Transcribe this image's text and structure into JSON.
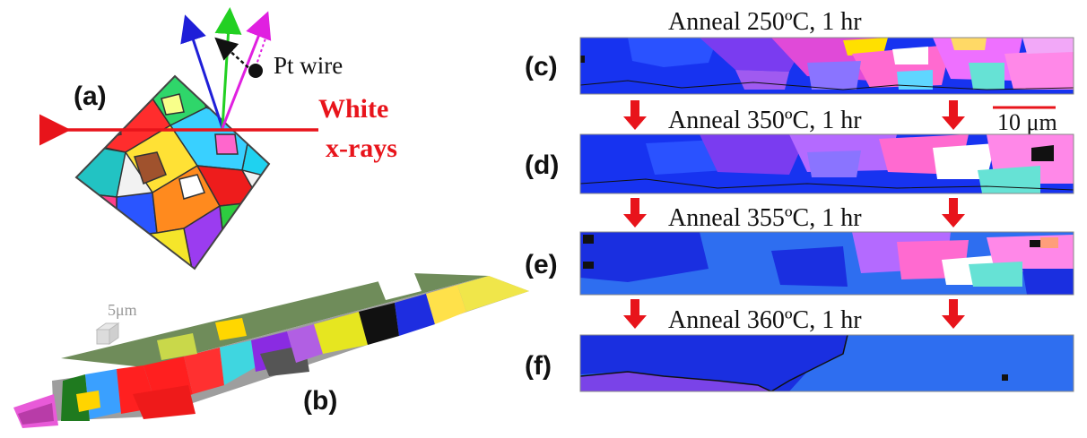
{
  "panel_a": {
    "label": "(a)",
    "pt_wire_label": "Pt wire",
    "xray_label_line1": "White",
    "xray_label_line2": "x-rays"
  },
  "panel_b": {
    "label": "(b)",
    "scale_cube_label": "5μm"
  },
  "panels_right": [
    {
      "label": "(c)",
      "anneal": "Anneal 250ºC,  1 hr"
    },
    {
      "label": "(d)",
      "anneal": "Anneal 350ºC,  1 hr"
    },
    {
      "label": "(e)",
      "anneal": "Anneal 355ºC,  1 hr"
    },
    {
      "label": "(f)",
      "anneal": "Anneal 360ºC,  1 hr"
    }
  ],
  "scale_bar": {
    "label": "10 μm"
  },
  "colors": {
    "xray_red": "#e8141b",
    "map_blue": "#2e6ef0",
    "deep_blue": "#1a2fe0",
    "purple": "#7a43e8"
  }
}
